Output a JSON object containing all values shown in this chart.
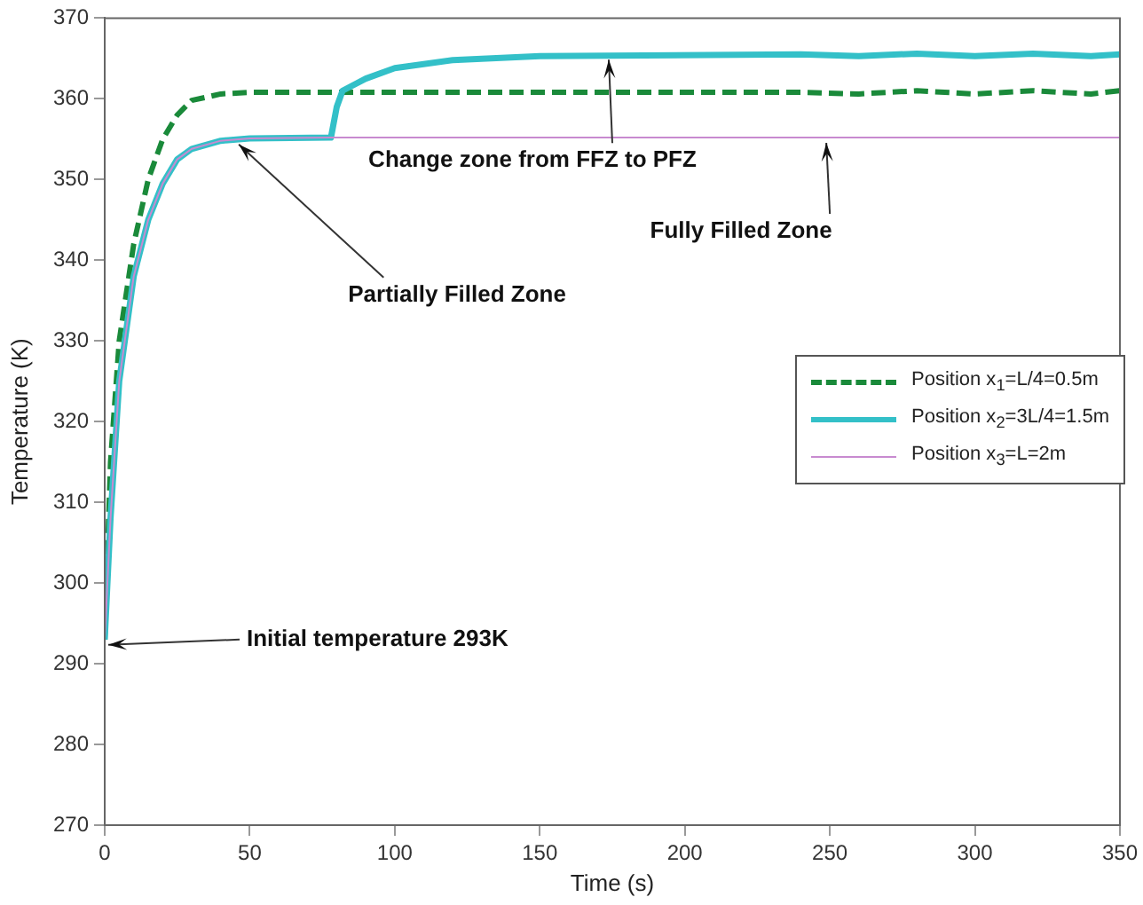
{
  "chart_data": {
    "type": "line",
    "xlabel": "Time (s)",
    "ylabel": "Temperature (K)",
    "xlim": [
      0,
      350
    ],
    "xticks": [
      0,
      50,
      100,
      150,
      200,
      250,
      300,
      350
    ],
    "ylim": [
      270,
      370
    ],
    "yticks": [
      270,
      280,
      290,
      300,
      310,
      320,
      330,
      340,
      350,
      360,
      370
    ],
    "grid": false,
    "legend": "right",
    "marker": "none",
    "series": [
      {
        "name": "Position x$_{1}$=L/4=0.5m",
        "color": "#1a8a3a",
        "line_style": "dashed",
        "x": [
          0,
          2,
          5,
          10,
          15,
          20,
          25,
          30,
          40,
          50,
          100,
          240,
          260,
          280,
          300,
          320,
          340,
          350
        ],
        "values": [
          293,
          315,
          330,
          342,
          350,
          355,
          358,
          359.8,
          360.6,
          360.8,
          360.8,
          360.8,
          360.6,
          361,
          360.6,
          361,
          360.6,
          361
        ]
      },
      {
        "name": "Position x$_{2}$=3L/4=1.5m",
        "color": "#33c0c8",
        "line_style": "solid",
        "x": [
          0,
          2,
          5,
          10,
          15,
          20,
          25,
          30,
          40,
          50,
          78,
          80,
          82,
          90,
          100,
          120,
          150,
          240,
          260,
          280,
          300,
          320,
          340,
          350
        ],
        "values": [
          293,
          308,
          325,
          338,
          345,
          349.5,
          352.5,
          353.8,
          354.8,
          355.1,
          355.2,
          359,
          361,
          362.5,
          363.8,
          364.8,
          365.3,
          365.5,
          365.3,
          365.6,
          365.3,
          365.6,
          365.3,
          365.5
        ]
      },
      {
        "name": "Position x$_{3}$=L=2m",
        "color": "#c88ad0",
        "line_style": "solid",
        "x": [
          0,
          2,
          5,
          10,
          15,
          20,
          25,
          30,
          40,
          50,
          78,
          350
        ],
        "values": [
          293,
          308,
          325,
          338,
          345,
          349.5,
          352.5,
          353.8,
          354.8,
          355.1,
          355.2,
          355.2
        ]
      }
    ],
    "annotations": [
      {
        "text": "Initial temperature 293K",
        "x": 0,
        "y": 293
      },
      {
        "text": "Partially Filled Zone",
        "x": 45,
        "y": 355
      },
      {
        "text": "Change zone from FFZ to PFZ",
        "x": 175,
        "y": 365.5
      },
      {
        "text": "Fully Filled Zone",
        "x": 250,
        "y": 355.2
      }
    ]
  }
}
